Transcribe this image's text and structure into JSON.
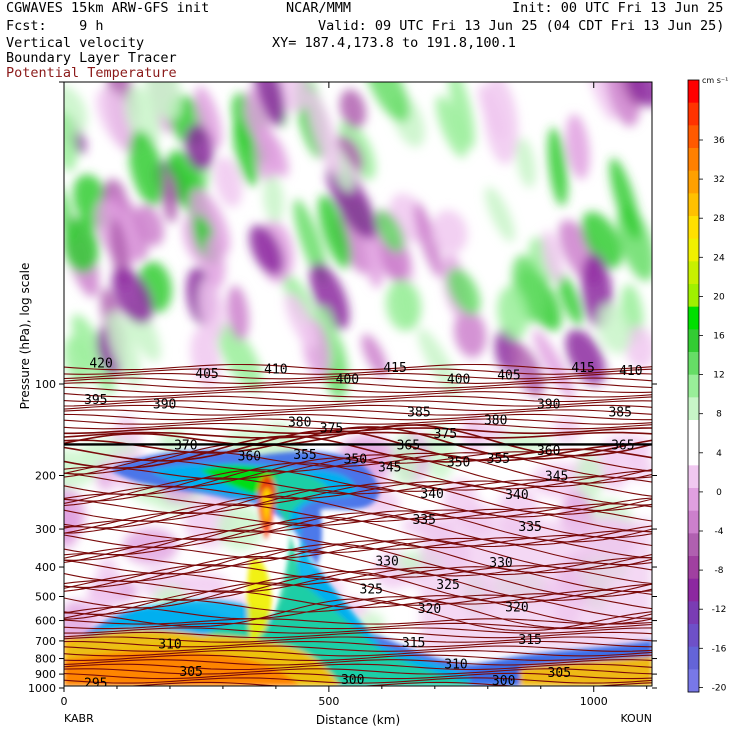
{
  "header": {
    "model": "CGWAVES 15km ARW-GFS init",
    "center": "NCAR/MMM",
    "init": "Init: 00 UTC Fri 13 Jun 25",
    "fcst": "Fcst:    9 h",
    "valid": "Valid: 09 UTC Fri 13 Jun 25 (04 CDT Fri 13 Jun 25)",
    "field1": "Vertical velocity",
    "xy": "XY= 187.4,173.8 to 191.8,100.1",
    "field2": "Boundary Layer Tracer",
    "field3": "Potential Temperature"
  },
  "colors": {
    "theta_line": "#7a0a0a",
    "field3_text": "#8b1a1a"
  },
  "chart_data": {
    "type": "heatmap",
    "title": "",
    "xlabel": "Distance (km)",
    "ylabel": "Pressure (hPa), log scale",
    "x_ticks": [
      "0",
      "500",
      "1000"
    ],
    "x_end_labels": [
      "KABR",
      "KOUN"
    ],
    "xlim": [
      0,
      1110
    ],
    "y_ticks": [
      "100",
      "200",
      "300",
      "400",
      "500",
      "600",
      "700",
      "800",
      "900",
      "1000"
    ],
    "y_scale": "log",
    "colorbar": {
      "unit": "cm s⁻¹",
      "tick_labels": [
        "36",
        "32",
        "28",
        "24",
        "20",
        "16",
        "12",
        "8",
        "4",
        "0",
        "-4",
        "-8",
        "-12",
        "-16",
        "-20"
      ],
      "colors": [
        "#ff0000",
        "#ff3300",
        "#ff5a00",
        "#ff8000",
        "#ffa000",
        "#ffc000",
        "#ffe000",
        "#f0f000",
        "#c8f000",
        "#a0f000",
        "#00e000",
        "#33cc33",
        "#66dd66",
        "#99ee99",
        "#c8f5c8",
        "#ffffff",
        "#ffffff",
        "#f0c8f0",
        "#e0a0e0",
        "#cc80cc",
        "#b060b0",
        "#a040a0",
        "#8c28a0",
        "#7a3cb4",
        "#6e50c8",
        "#6464d8",
        "#7878e8"
      ]
    },
    "theta_labels": [
      {
        "value": 420,
        "x": 70,
        "p": 85
      },
      {
        "value": 405,
        "x": 270,
        "p": 92
      },
      {
        "value": 410,
        "x": 400,
        "p": 89
      },
      {
        "value": 400,
        "x": 535,
        "p": 96
      },
      {
        "value": 415,
        "x": 625,
        "p": 88
      },
      {
        "value": 400,
        "x": 745,
        "p": 96
      },
      {
        "value": 405,
        "x": 840,
        "p": 93
      },
      {
        "value": 415,
        "x": 980,
        "p": 88
      },
      {
        "value": 410,
        "x": 1070,
        "p": 90
      },
      {
        "value": 395,
        "x": 60,
        "p": 112
      },
      {
        "value": 390,
        "x": 190,
        "p": 116
      },
      {
        "value": 380,
        "x": 445,
        "p": 133
      },
      {
        "value": 385,
        "x": 670,
        "p": 123
      },
      {
        "value": 375,
        "x": 505,
        "p": 139
      },
      {
        "value": 390,
        "x": 915,
        "p": 116
      },
      {
        "value": 385,
        "x": 1050,
        "p": 123
      },
      {
        "value": 380,
        "x": 815,
        "p": 131
      },
      {
        "value": 375,
        "x": 720,
        "p": 145
      },
      {
        "value": 370,
        "x": 230,
        "p": 158
      },
      {
        "value": 365,
        "x": 650,
        "p": 158
      },
      {
        "value": 365,
        "x": 1055,
        "p": 158
      },
      {
        "value": 360,
        "x": 915,
        "p": 165
      },
      {
        "value": 360,
        "x": 350,
        "p": 172
      },
      {
        "value": 355,
        "x": 455,
        "p": 170
      },
      {
        "value": 355,
        "x": 820,
        "p": 175
      },
      {
        "value": 350,
        "x": 550,
        "p": 176
      },
      {
        "value": 350,
        "x": 745,
        "p": 180
      },
      {
        "value": 345,
        "x": 615,
        "p": 187
      },
      {
        "value": 345,
        "x": 930,
        "p": 200
      },
      {
        "value": 340,
        "x": 695,
        "p": 228
      },
      {
        "value": 340,
        "x": 855,
        "p": 230
      },
      {
        "value": 335,
        "x": 680,
        "p": 278
      },
      {
        "value": 335,
        "x": 880,
        "p": 293
      },
      {
        "value": 330,
        "x": 610,
        "p": 380
      },
      {
        "value": 330,
        "x": 825,
        "p": 385
      },
      {
        "value": 325,
        "x": 580,
        "p": 470
      },
      {
        "value": 325,
        "x": 725,
        "p": 455
      },
      {
        "value": 320,
        "x": 690,
        "p": 545
      },
      {
        "value": 320,
        "x": 855,
        "p": 540
      },
      {
        "value": 315,
        "x": 660,
        "p": 705
      },
      {
        "value": 315,
        "x": 880,
        "p": 690
      },
      {
        "value": 310,
        "x": 200,
        "p": 715
      },
      {
        "value": 310,
        "x": 740,
        "p": 830
      },
      {
        "value": 305,
        "x": 240,
        "p": 880
      },
      {
        "value": 305,
        "x": 935,
        "p": 885
      },
      {
        "value": 300,
        "x": 545,
        "p": 935
      },
      {
        "value": 300,
        "x": 830,
        "p": 940
      },
      {
        "value": 295,
        "x": 60,
        "p": 960
      }
    ]
  }
}
